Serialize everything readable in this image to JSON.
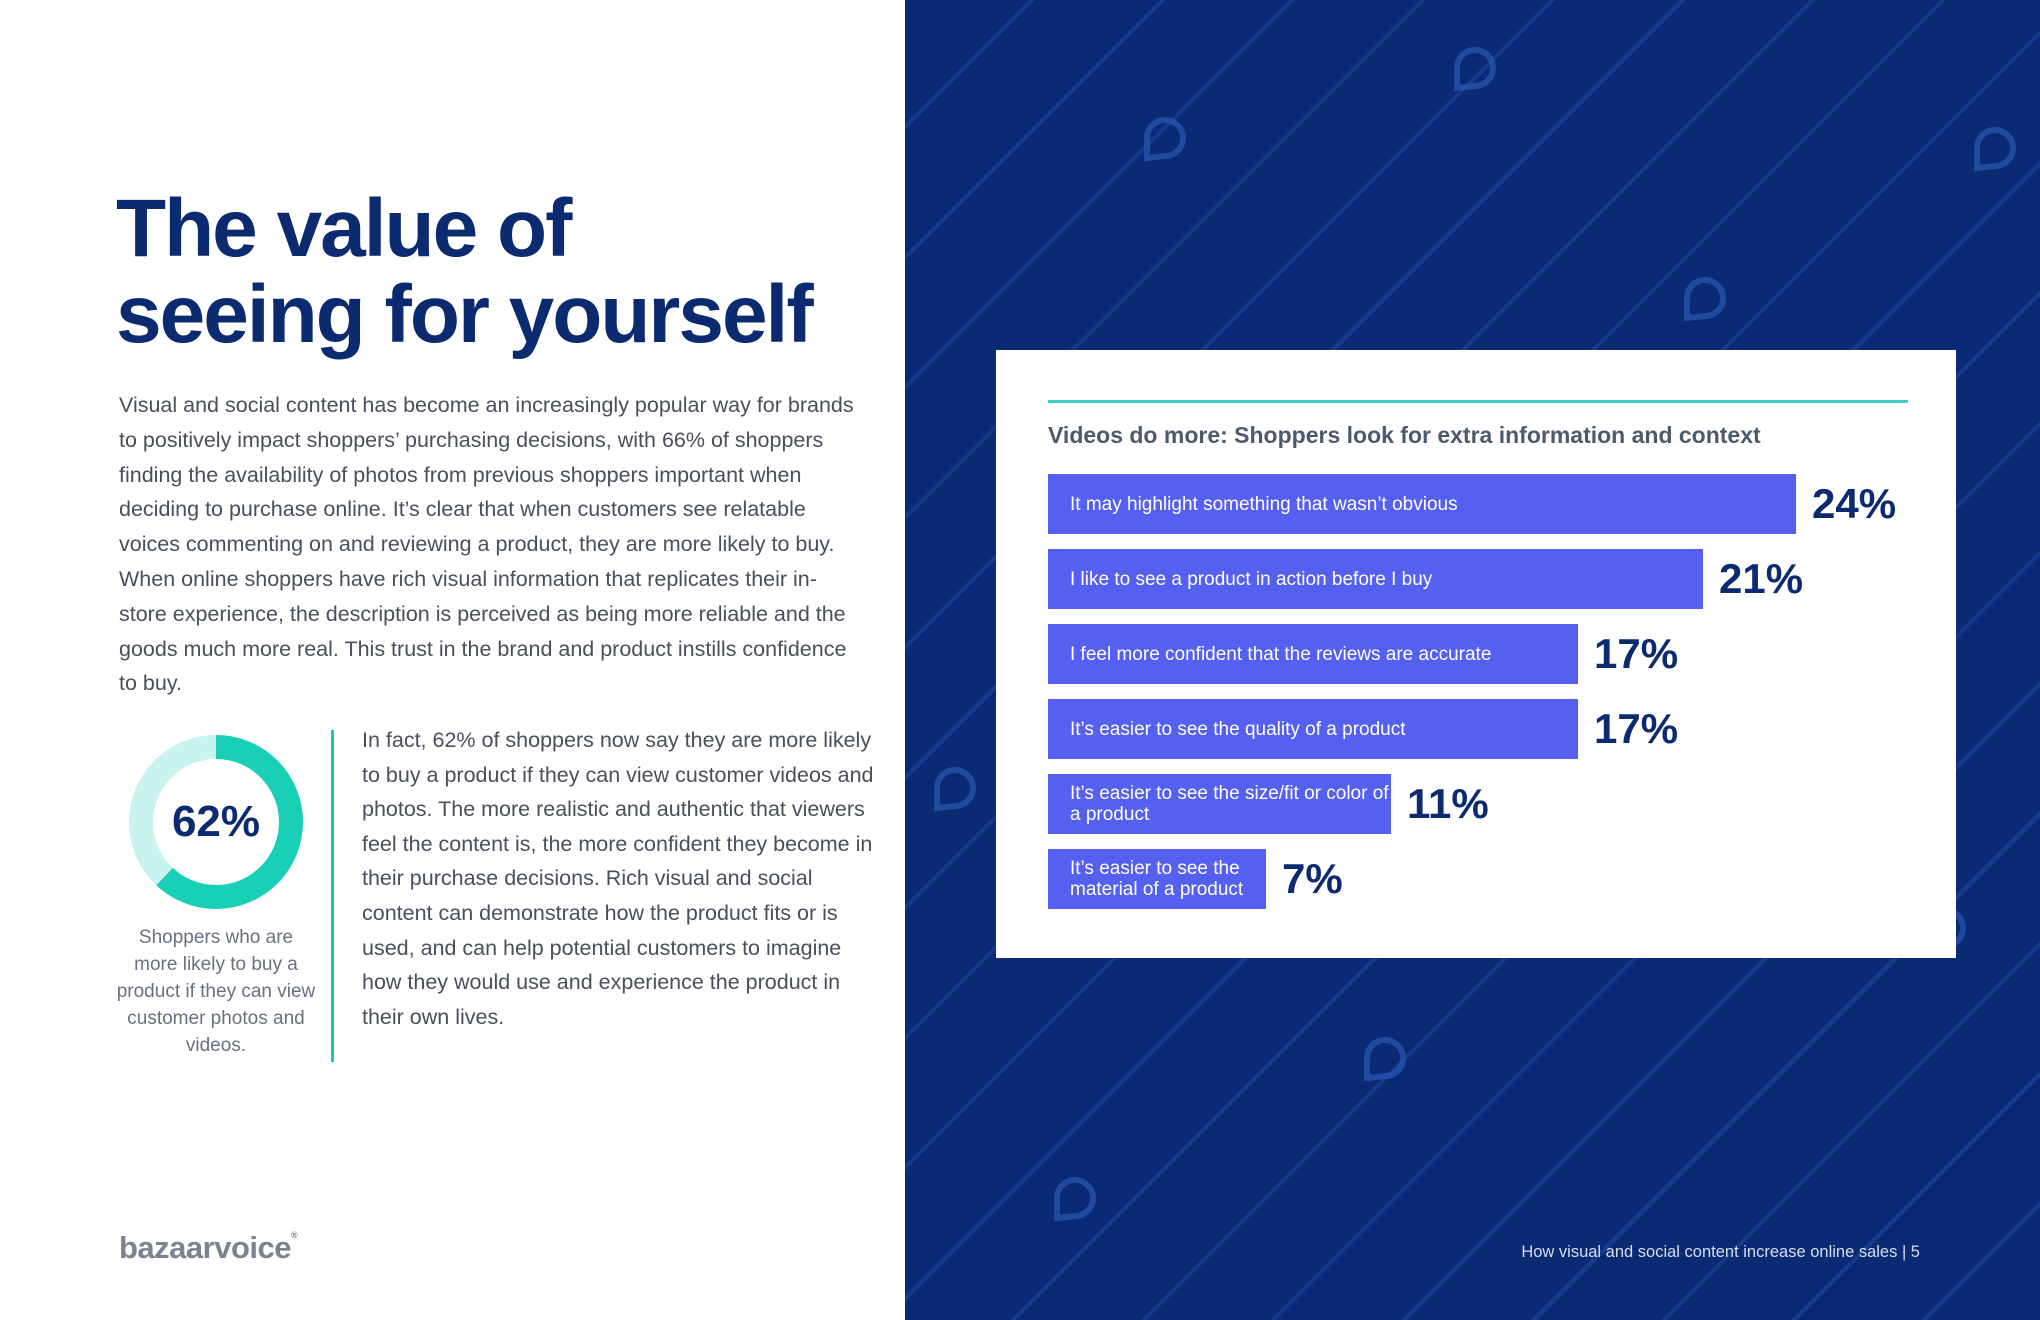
{
  "page": {
    "title_lines": [
      "The value of",
      "seeing for yourself"
    ],
    "intro": "Visual and social content has become an increasingly popular way for brands to positively impact shoppers’ purchasing decisions, with 66% of shoppers finding the availability of photos from previous shoppers important when deciding to purchase online. It’s clear that when customers see relatable voices commenting on and reviewing a product, they are more likely to buy. When online shoppers have rich visual information that replicates their in-store experience, the description is perceived as being more reliable and the goods much more real. This trust in the brand and product instills confidence to buy.",
    "body2": "In fact, 62% of shoppers now say they are more likely to buy a product if they can view customer videos and photos. The more realistic and authentic that viewers feel the content is, the more confident they become in their purchase decisions. Rich visual and social content can demonstrate how the product fits or is used, and can help potential customers to imagine how they would use and experience the product in their own lives.",
    "logo": "bazaarvoice",
    "logo_mark": "®",
    "footer": "How visual and social content increase online sales  |  5"
  },
  "stat": {
    "value": 62,
    "label": "62%",
    "caption": "Shoppers who are more likely to buy a product if they can view customer photos and videos.",
    "colors": {
      "ring": "#19d0b6",
      "track": "#c9f3ee"
    }
  },
  "colors": {
    "navy": "#0b2a6f",
    "bar": "#5660f0",
    "accent": "#19c6b0",
    "panel": "#0a2a73"
  },
  "chart_data": {
    "type": "bar",
    "orientation": "horizontal",
    "title": "Videos do more: Shoppers look for extra information and context",
    "categories": [
      "It may highlight something that wasn’t obvious",
      "I like to see a product in action before I buy",
      "I feel more confident that the reviews are accurate",
      "It’s easier to see the quality of a product",
      "It’s easier to see the size/fit or color of a product",
      "It’s easier to see the material of a product"
    ],
    "values": [
      24,
      21,
      17,
      17,
      11,
      7
    ],
    "value_labels": [
      "24%",
      "21%",
      "17%",
      "17%",
      "11%",
      "7%"
    ],
    "unit": "%",
    "xlim": [
      0,
      24
    ],
    "grid": false,
    "legend": "none"
  }
}
